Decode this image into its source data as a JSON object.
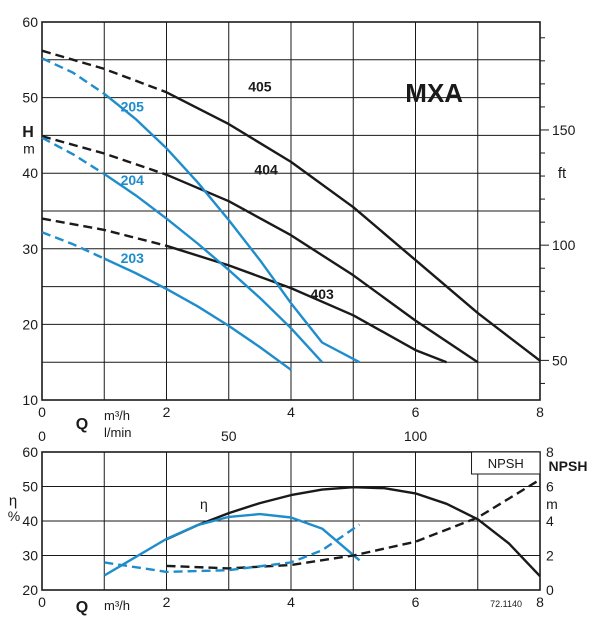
{
  "chart_data": [
    {
      "type": "line",
      "title": "MXA",
      "ylabel": "H",
      "ylabel_unit": "m",
      "y2label": "ft",
      "xlabel": "Q",
      "x_units": "m³/h",
      "x2_units": "l/min",
      "xlim": [
        0,
        8
      ],
      "ylim": [
        10,
        60
      ],
      "xticks": [
        "0",
        "2",
        "4",
        "6",
        "8"
      ],
      "x2ticks": [
        "0",
        "50",
        "100"
      ],
      "x2tick_values_m3h": [
        0,
        3,
        6
      ],
      "yticks": [
        "10",
        "20",
        "30",
        "40",
        "50",
        "60"
      ],
      "y2ticks": [
        "50",
        "100",
        "150"
      ],
      "y2tick_values_m": [
        15.24,
        30.48,
        45.72
      ],
      "grid": true,
      "series": [
        {
          "name": "405",
          "color": "#1a1a1a",
          "label_at": [
            3.5,
            51.5
          ],
          "dashed": [
            [
              0,
              56.2
            ],
            [
              1,
              53.8
            ],
            [
              2,
              50.7
            ]
          ],
          "solid": [
            [
              2,
              50.7
            ],
            [
              3,
              46.5
            ],
            [
              4,
              41.5
            ],
            [
              5,
              35.5
            ],
            [
              6,
              28.5
            ],
            [
              7,
              21.5
            ],
            [
              8,
              15.2
            ]
          ]
        },
        {
          "name": "404",
          "color": "#1a1a1a",
          "label_at": [
            3.6,
            40.5
          ],
          "dashed": [
            [
              0,
              44.9
            ],
            [
              1,
              42.6
            ],
            [
              2,
              39.8
            ]
          ],
          "solid": [
            [
              2,
              39.8
            ],
            [
              3,
              36.3
            ],
            [
              4,
              31.8
            ],
            [
              5,
              26.5
            ],
            [
              6,
              20.5
            ],
            [
              7,
              15.0
            ]
          ]
        },
        {
          "name": "403",
          "color": "#1a1a1a",
          "label_at": [
            4.5,
            24.0
          ],
          "dashed": [
            [
              0,
              34.0
            ],
            [
              1,
              32.5
            ],
            [
              2,
              30.4
            ]
          ],
          "solid": [
            [
              2,
              30.4
            ],
            [
              3,
              27.8
            ],
            [
              4,
              24.8
            ],
            [
              5,
              21.2
            ],
            [
              6,
              16.6
            ],
            [
              6.5,
              15.0
            ]
          ]
        },
        {
          "name": "205",
          "color": "#1f8dcc",
          "label_at": [
            1.45,
            48.8
          ],
          "dashed": [
            [
              0,
              55.2
            ],
            [
              0.5,
              53.3
            ],
            [
              1,
              50.5
            ]
          ],
          "solid": [
            [
              1,
              50.5
            ],
            [
              1.5,
              47.2
            ],
            [
              2,
              43.3
            ],
            [
              2.5,
              38.8
            ],
            [
              3,
              33.8
            ],
            [
              3.5,
              28.5
            ],
            [
              4,
              22.8
            ],
            [
              4.5,
              17.6
            ],
            [
              5.1,
              15.0
            ]
          ]
        },
        {
          "name": "204",
          "color": "#1f8dcc",
          "label_at": [
            1.45,
            39.1
          ],
          "dashed": [
            [
              0,
              44.7
            ],
            [
              0.5,
              42.5
            ],
            [
              1,
              39.9
            ]
          ],
          "solid": [
            [
              1,
              39.9
            ],
            [
              1.5,
              37.1
            ],
            [
              2,
              34.0
            ],
            [
              2.5,
              30.7
            ],
            [
              3,
              27.2
            ],
            [
              3.5,
              23.5
            ],
            [
              4,
              19.5
            ],
            [
              4.5,
              15.0
            ]
          ]
        },
        {
          "name": "203",
          "color": "#1f8dcc",
          "label_at": [
            1.45,
            28.8
          ],
          "dashed": [
            [
              0,
              32.2
            ],
            [
              0.5,
              30.6
            ],
            [
              1,
              28.7
            ]
          ],
          "solid": [
            [
              1,
              28.7
            ],
            [
              1.5,
              26.8
            ],
            [
              2,
              24.7
            ],
            [
              2.5,
              22.4
            ],
            [
              3,
              19.8
            ],
            [
              3.5,
              17.0
            ],
            [
              4,
              14.0
            ]
          ]
        }
      ]
    },
    {
      "type": "line",
      "ylabel": "η",
      "ylabel_unit": "%",
      "y2label": "NPSH",
      "y2label_unit": "m",
      "legend_box": "NPSH",
      "xlabel": "Q",
      "x_units": "m³/h",
      "xlim": [
        0,
        8
      ],
      "ylim": [
        20,
        60
      ],
      "y2lim": [
        0,
        8
      ],
      "xticks": [
        "0",
        "2",
        "4",
        "6",
        "8"
      ],
      "yticks": [
        "20",
        "30",
        "40",
        "50",
        "60"
      ],
      "y2ticks": [
        "0",
        "2",
        "4",
        "6",
        "8"
      ],
      "eta_label": "η",
      "eta_label_at": [
        2.6,
        45
      ],
      "figure_code": "72.1140",
      "grid": true,
      "series": [
        {
          "color": "#1a1a1a",
          "axis": "left",
          "solid": [
            [
              2,
              34.7
            ],
            [
              2.5,
              38.8
            ],
            [
              3,
              42.3
            ],
            [
              3.5,
              45.2
            ],
            [
              4,
              47.5
            ],
            [
              4.5,
              49.1
            ],
            [
              5,
              49.8
            ],
            [
              5.5,
              49.5
            ],
            [
              6,
              48.0
            ],
            [
              6.5,
              45.0
            ],
            [
              7,
              40.5
            ],
            [
              7.5,
              33.5
            ],
            [
              8,
              24.0
            ]
          ]
        },
        {
          "color": "#1f8dcc",
          "axis": "left",
          "solid": [
            [
              1,
              24.2
            ],
            [
              1.5,
              29.5
            ],
            [
              2,
              34.8
            ],
            [
              2.5,
              38.8
            ],
            [
              3,
              41.2
            ],
            [
              3.5,
              42.0
            ],
            [
              4,
              41.0
            ],
            [
              4.5,
              37.8
            ],
            [
              5.1,
              28.6
            ]
          ]
        },
        {
          "color": "#1a1a1a",
          "axis": "right",
          "dashed": [
            [
              2,
              1.4
            ],
            [
              3,
              1.25
            ],
            [
              4,
              1.45
            ],
            [
              5,
              2.0
            ],
            [
              6,
              2.8
            ],
            [
              7,
              4.2
            ],
            [
              8,
              6.4
            ]
          ]
        },
        {
          "color": "#1f8dcc",
          "axis": "right",
          "dashed": [
            [
              1,
              1.6
            ],
            [
              2,
              1.05
            ],
            [
              3,
              1.15
            ],
            [
              4,
              1.6
            ],
            [
              4.5,
              2.3
            ],
            [
              5.1,
              3.8
            ]
          ]
        }
      ]
    }
  ]
}
